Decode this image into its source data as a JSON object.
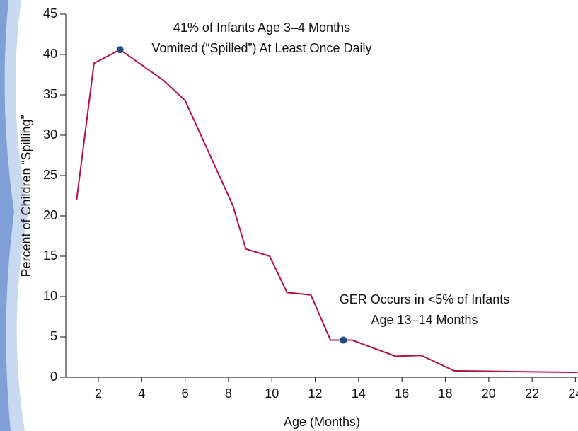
{
  "chart_data": {
    "type": "line",
    "x": [
      1,
      1.8,
      3,
      5,
      6,
      8.2,
      8.8,
      9.9,
      10.7,
      11.8,
      12.7,
      13.7,
      15.7,
      16.9,
      18.4,
      24.1
    ],
    "series": [
      {
        "name": "Percent spilling",
        "color": "#b5123e",
        "values": [
          22,
          38.9,
          40.6,
          36.8,
          34.3,
          21.3,
          15.9,
          15,
          10.5,
          10.2,
          4.6,
          4.6,
          2.6,
          2.7,
          0.8,
          0.6
        ]
      }
    ],
    "xlim": [
      0.5,
      24.1
    ],
    "xticks": [
      2,
      4,
      6,
      8,
      10,
      12,
      14,
      16,
      18,
      20,
      22,
      24
    ],
    "ylim": [
      0,
      45
    ],
    "yticks": [
      0,
      5,
      10,
      15,
      20,
      25,
      30,
      35,
      40,
      45
    ],
    "xlabel": "Age (Months)",
    "ylabel": "Percent of Children “Spilling”",
    "annotations": [
      {
        "x": 3,
        "y": 40.6,
        "color": "#1f4e79",
        "lines": [
          "41% of Infants Age 3–4 Months",
          "Vomited (“Spilled”) At Least Once Daily"
        ]
      },
      {
        "x": 13.3,
        "y": 4.6,
        "color": "#1f4e79",
        "lines": [
          "GER Occurs in <5% of Infants",
          "Age 13–14 Months"
        ]
      }
    ]
  }
}
